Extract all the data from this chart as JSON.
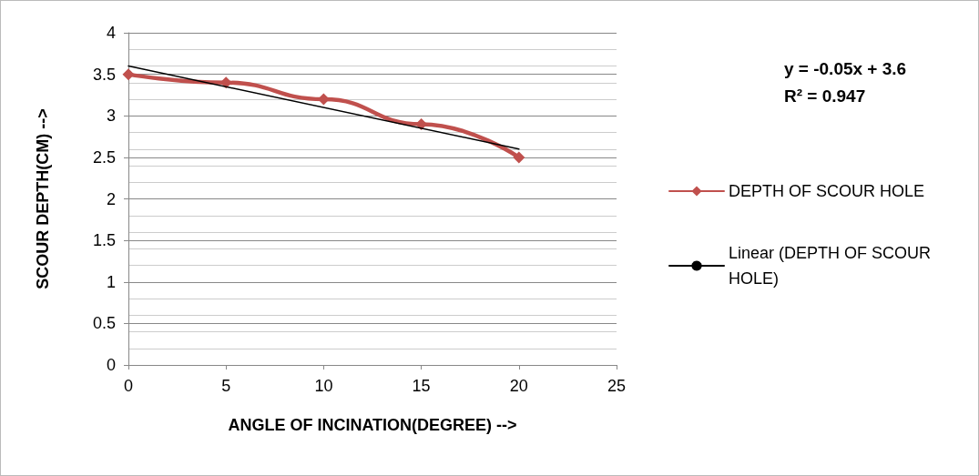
{
  "chart_data": {
    "type": "line",
    "xlabel": "ANGLE OF INCINATION(DEGREE) -->",
    "ylabel": "SCOUR DEPTH(CM) -->",
    "x": [
      0,
      5,
      10,
      15,
      20
    ],
    "series": [
      {
        "name": "DEPTH OF SCOUR HOLE",
        "color": "#c0504d",
        "values": [
          3.5,
          3.4,
          3.2,
          2.9,
          2.5
        ],
        "marker": "diamond"
      },
      {
        "name": "Linear (DEPTH OF SCOUR HOLE)",
        "color": "#000000",
        "type": "line",
        "x": [
          0,
          20
        ],
        "values": [
          3.6,
          2.6
        ],
        "marker": "none"
      }
    ],
    "xlim": [
      0,
      25
    ],
    "xticks": [
      0,
      5,
      10,
      15,
      20,
      25
    ],
    "ylim": [
      0,
      4
    ],
    "yticks": [
      0,
      0.5,
      1,
      1.5,
      2,
      2.5,
      3,
      3.5,
      4
    ],
    "annotations": [
      "y = -0.05x + 3.6",
      "R² = 0.947"
    ],
    "grid": "y",
    "legend": "right",
    "line_style": "solid"
  }
}
